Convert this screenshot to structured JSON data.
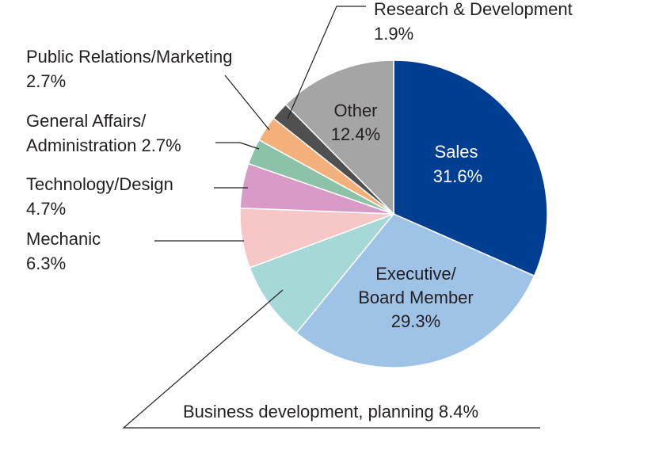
{
  "chart_data": {
    "type": "pie",
    "title": "",
    "slices": [
      {
        "label": "Sales",
        "value": 31.6,
        "value_text": "31.6%",
        "color": "#003e92"
      },
      {
        "label": "Executive/ Board Member",
        "value": 29.3,
        "value_text": "29.3%",
        "color": "#9fc2e7"
      },
      {
        "label": "Business development, planning",
        "value": 8.4,
        "value_text": "8.4%",
        "color": "#a5d8d6"
      },
      {
        "label": "Mechanic",
        "value": 6.3,
        "value_text": "6.3%",
        "color": "#f7c6c7"
      },
      {
        "label": "Technology/Design",
        "value": 4.7,
        "value_text": "4.7%",
        "color": "#d89ac6"
      },
      {
        "label": "General Affairs/ Administration",
        "value": 2.7,
        "value_text": "2.7%",
        "color": "#8cc3a8"
      },
      {
        "label": "Public Relations/Marketing",
        "value": 2.7,
        "value_text": "2.7%",
        "color": "#f4b07a"
      },
      {
        "label": "Research & Development",
        "value": 1.9,
        "value_text": "1.9%",
        "color": "#505050"
      },
      {
        "label": "Other",
        "value": 12.4,
        "value_text": "12.4%",
        "color": "#a5a5a5"
      }
    ],
    "labels": {
      "sales": {
        "name": "Sales",
        "value": "31.6%"
      },
      "exec_line1": "Executive/",
      "exec_line2": "Board Member",
      "exec_value": "29.3%",
      "other": {
        "name": "Other",
        "value": "12.4%"
      },
      "rnd": {
        "name": "Research & Development",
        "value": "1.9%"
      },
      "pr": {
        "name": "Public Relations/Marketing",
        "value": "2.7%"
      },
      "ga_line1": "General Affairs/",
      "ga_line2": "Administration 2.7%",
      "tech": {
        "name": "Technology/Design",
        "value": "4.7%"
      },
      "mech": {
        "name": "Mechanic",
        "value": "6.3%"
      },
      "bizdev": "Business development, planning 8.4%"
    }
  }
}
